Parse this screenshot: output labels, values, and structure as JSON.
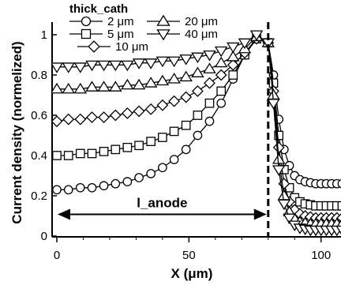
{
  "chart_data": {
    "type": "line",
    "xlabel": "X (μm)",
    "ylabel": "Current density (normelized)",
    "xlim": [
      0,
      108
    ],
    "ylim": [
      0,
      1.05
    ],
    "xticks": [
      0,
      50,
      100
    ],
    "xtick_labels": [
      "0",
      "50",
      "100"
    ],
    "yticks": [
      0,
      0.2,
      0.4,
      0.6,
      0.8,
      1
    ],
    "ytick_labels": [
      "0",
      "0.2",
      "0.4",
      "0.6",
      "0.8",
      "1"
    ],
    "grid": false,
    "legend": {
      "title": "thick_cath",
      "placement": "top-left"
    },
    "vline_x": 80,
    "annotation": {
      "text": "l_anode",
      "from_x": 0,
      "to_x": 80,
      "y": 0.1
    },
    "series": [
      {
        "name": "2 μm",
        "marker": "circle",
        "x": [
          0,
          4.4,
          8.9,
          13.3,
          17.8,
          22.2,
          26.7,
          31.1,
          35.6,
          40,
          44.4,
          48.9,
          53.3,
          57.8,
          62.2,
          66.7,
          71.1,
          75.6,
          80,
          82,
          84,
          86,
          88,
          90,
          92,
          94,
          96,
          98,
          100,
          102,
          104,
          106,
          108
        ],
        "values": [
          0.23,
          0.23,
          0.24,
          0.24,
          0.25,
          0.26,
          0.27,
          0.29,
          0.31,
          0.34,
          0.38,
          0.43,
          0.5,
          0.57,
          0.66,
          0.78,
          0.9,
          0.98,
          0.96,
          0.8,
          0.58,
          0.43,
          0.35,
          0.3,
          0.28,
          0.27,
          0.265,
          0.26,
          0.26,
          0.26,
          0.26,
          0.26,
          0.26
        ]
      },
      {
        "name": "5 μm",
        "marker": "square",
        "x": [
          0,
          4.4,
          8.9,
          13.3,
          17.8,
          22.2,
          26.7,
          31.1,
          35.6,
          40,
          44.4,
          48.9,
          53.3,
          57.8,
          62.2,
          66.7,
          71.1,
          75.6,
          80,
          82,
          84,
          86,
          88,
          90,
          92,
          94,
          96,
          98,
          100,
          102,
          104,
          106,
          108
        ],
        "values": [
          0.4,
          0.4,
          0.41,
          0.41,
          0.42,
          0.43,
          0.44,
          0.45,
          0.47,
          0.49,
          0.52,
          0.55,
          0.6,
          0.66,
          0.72,
          0.8,
          0.9,
          0.98,
          0.96,
          0.76,
          0.5,
          0.33,
          0.24,
          0.19,
          0.17,
          0.16,
          0.155,
          0.15,
          0.15,
          0.15,
          0.15,
          0.15,
          0.15
        ]
      },
      {
        "name": "10 μm",
        "marker": "diamond",
        "x": [
          0,
          4.4,
          8.9,
          13.3,
          17.8,
          22.2,
          26.7,
          31.1,
          35.6,
          40,
          44.4,
          48.9,
          53.3,
          57.8,
          62.2,
          66.7,
          71.1,
          75.6,
          80,
          82,
          84,
          86,
          88,
          90,
          92,
          94,
          96,
          98,
          100,
          102,
          104,
          106,
          108
        ],
        "values": [
          0.57,
          0.58,
          0.58,
          0.59,
          0.59,
          0.6,
          0.61,
          0.62,
          0.63,
          0.65,
          0.67,
          0.69,
          0.72,
          0.76,
          0.8,
          0.85,
          0.91,
          0.98,
          0.96,
          0.72,
          0.44,
          0.26,
          0.17,
          0.13,
          0.11,
          0.1,
          0.095,
          0.09,
          0.09,
          0.09,
          0.09,
          0.09,
          0.09
        ]
      },
      {
        "name": "20 μm",
        "marker": "triangle-up",
        "x": [
          0,
          4.4,
          8.9,
          13.3,
          17.8,
          22.2,
          26.7,
          31.1,
          35.6,
          40,
          44.4,
          48.9,
          53.3,
          57.8,
          62.2,
          66.7,
          71.1,
          75.6,
          80,
          82,
          84,
          86,
          88,
          90,
          92,
          94,
          96,
          98,
          100,
          102,
          104,
          106,
          108
        ],
        "values": [
          0.73,
          0.73,
          0.73,
          0.74,
          0.74,
          0.74,
          0.75,
          0.75,
          0.76,
          0.77,
          0.78,
          0.79,
          0.81,
          0.83,
          0.86,
          0.89,
          0.93,
          0.99,
          0.96,
          0.7,
          0.38,
          0.2,
          0.12,
          0.085,
          0.07,
          0.065,
          0.06,
          0.06,
          0.06,
          0.06,
          0.06,
          0.06,
          0.06
        ]
      },
      {
        "name": "40 μm",
        "marker": "triangle-down",
        "x": [
          0,
          4.4,
          8.9,
          13.3,
          17.8,
          22.2,
          26.7,
          31.1,
          35.6,
          40,
          44.4,
          48.9,
          53.3,
          57.8,
          62.2,
          66.7,
          71.1,
          75.6,
          80,
          82,
          84,
          86,
          88,
          90,
          92,
          94,
          96,
          98,
          100,
          102,
          104,
          106,
          108
        ],
        "values": [
          0.84,
          0.84,
          0.84,
          0.85,
          0.85,
          0.85,
          0.85,
          0.86,
          0.86,
          0.87,
          0.87,
          0.88,
          0.89,
          0.9,
          0.92,
          0.94,
          0.96,
          1.0,
          0.96,
          0.66,
          0.33,
          0.16,
          0.09,
          0.055,
          0.04,
          0.035,
          0.03,
          0.03,
          0.03,
          0.03,
          0.03,
          0.03,
          0.03
        ]
      }
    ]
  }
}
